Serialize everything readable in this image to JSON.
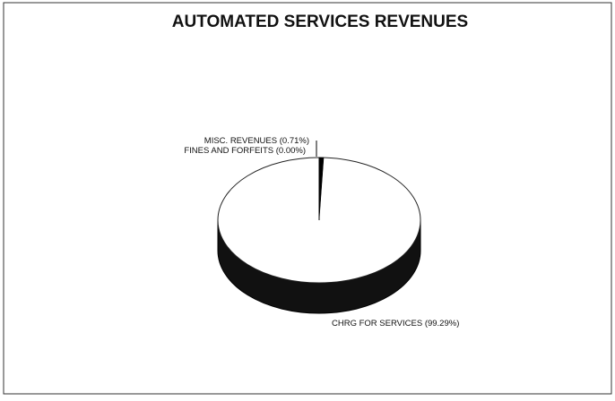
{
  "chart_data": {
    "type": "pie",
    "title": "AUTOMATED SERVICES REVENUES",
    "slices": [
      {
        "label": "MISC. REVENUES (0.71%)",
        "value": 0.71
      },
      {
        "label": "FINES AND FORFEITS (0.00%)",
        "value": 0.0
      },
      {
        "label": "CHRG FOR SERVICES (99.29%)",
        "value": 99.29
      }
    ],
    "legend": "none",
    "style": "3d"
  }
}
